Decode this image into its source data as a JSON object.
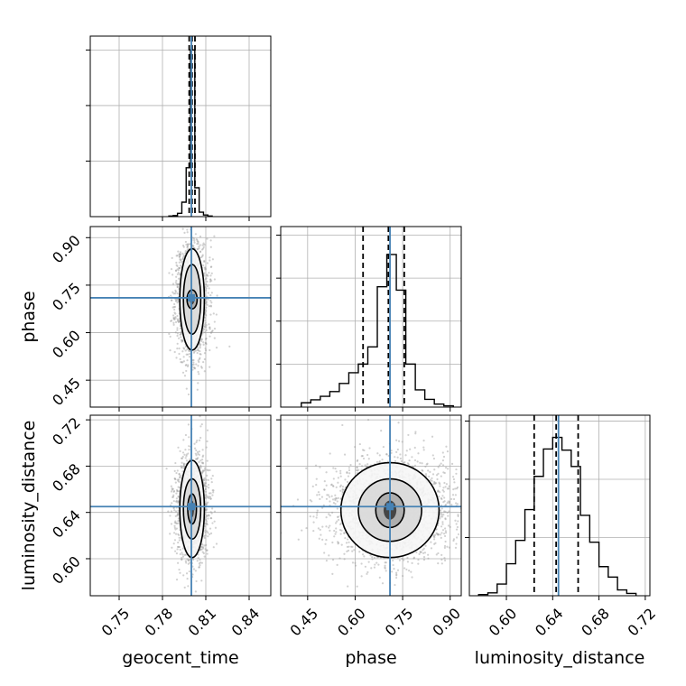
{
  "colors": {
    "truth": "#4682b4",
    "hist": "#000000",
    "grid": "#b0b0b0",
    "frame": "#000000",
    "scatter": "#9a9a9a"
  },
  "chart_data": {
    "type": "corner",
    "parameters": [
      "geocent_time",
      "phase",
      "luminosity_distance"
    ],
    "axis_labels": {
      "geocent_time": "geocent_time",
      "phase": "phase",
      "luminosity_distance": "luminosity_distance"
    },
    "ranges": {
      "geocent_time": [
        0.73,
        0.855
      ],
      "phase": [
        0.365,
        0.935
      ],
      "luminosity_distance": [
        0.568,
        0.724
      ]
    },
    "ticks": {
      "geocent_time": [
        "0.75",
        "0.78",
        "0.81",
        "0.84"
      ],
      "phase": [
        "0.45",
        "0.60",
        "0.75",
        "0.90"
      ],
      "luminosity_distance": [
        "0.60",
        "0.64",
        "0.68",
        "0.72"
      ]
    },
    "truths": {
      "geocent_time": 0.8,
      "phase": 0.71,
      "luminosity_distance": 0.645
    },
    "quantiles": {
      "geocent_time": [
        0.7985,
        0.8005,
        0.8025
      ],
      "phase": [
        0.625,
        0.705,
        0.755
      ],
      "luminosity_distance": [
        0.624,
        0.643,
        0.662
      ]
    },
    "histograms": {
      "geocent_time": {
        "edges": [
          0.7844,
          0.7874,
          0.7904,
          0.7934,
          0.7964,
          0.7994,
          0.8024,
          0.8054,
          0.8084,
          0.8114,
          0.8144
        ],
        "counts": [
          0.01,
          0.02,
          0.06,
          0.26,
          0.88,
          3.0,
          0.52,
          0.08,
          0.03,
          0.01
        ]
      },
      "phase": {
        "edges": [
          0.43,
          0.46,
          0.49,
          0.52,
          0.55,
          0.58,
          0.61,
          0.64,
          0.67,
          0.7,
          0.73,
          0.76,
          0.79,
          0.82,
          0.85,
          0.88,
          0.91
        ],
        "counts": [
          0.1,
          0.17,
          0.25,
          0.36,
          0.55,
          0.8,
          1.0,
          1.4,
          2.8,
          3.55,
          2.72,
          1.0,
          0.4,
          0.18,
          0.07,
          0.03
        ]
      },
      "luminosity_distance": {
        "edges": [
          0.576,
          0.584,
          0.592,
          0.6,
          0.608,
          0.616,
          0.624,
          0.632,
          0.64,
          0.648,
          0.656,
          0.664,
          0.672,
          0.68,
          0.688,
          0.696,
          0.704,
          0.712
        ],
        "counts": [
          0.02,
          0.05,
          0.2,
          0.55,
          0.95,
          1.48,
          2.05,
          2.52,
          2.72,
          2.5,
          2.22,
          1.38,
          0.92,
          0.5,
          0.32,
          0.1,
          0.04
        ]
      }
    },
    "hist_ymax": {
      "geocent_time": 3.25,
      "phase": 4.2,
      "luminosity_distance": 3.1
    },
    "hist_yticks": {
      "geocent_time": [
        1,
        2,
        3
      ],
      "phase": [
        1,
        2,
        3,
        4
      ],
      "luminosity_distance": [
        1,
        2,
        3
      ]
    },
    "density_2d": [
      {
        "x": "geocent_time",
        "y": "phase",
        "center": [
          0.8005,
          0.705
        ],
        "sigma": [
          0.0045,
          0.075
        ],
        "contours": [
          [
            0.0035,
            0.03
          ],
          [
            0.006,
            0.11
          ],
          [
            0.0085,
            0.16
          ]
        ],
        "n_points": 1500,
        "seed": 11
      },
      {
        "x": "geocent_time",
        "y": "luminosity_distance",
        "center": [
          0.8005,
          0.643
        ],
        "sigma": [
          0.0045,
          0.018
        ],
        "contours": [
          [
            0.003,
            0.013
          ],
          [
            0.006,
            0.026
          ],
          [
            0.0085,
            0.042
          ]
        ],
        "n_points": 1500,
        "seed": 23
      },
      {
        "x": "phase",
        "y": "luminosity_distance",
        "center": [
          0.71,
          0.642
        ],
        "sigma": [
          0.075,
          0.018
        ],
        "contours": [
          [
            0.045,
            0.015
          ],
          [
            0.1,
            0.027
          ],
          [
            0.155,
            0.041
          ]
        ],
        "n_points": 2200,
        "seed": 37
      }
    ]
  }
}
